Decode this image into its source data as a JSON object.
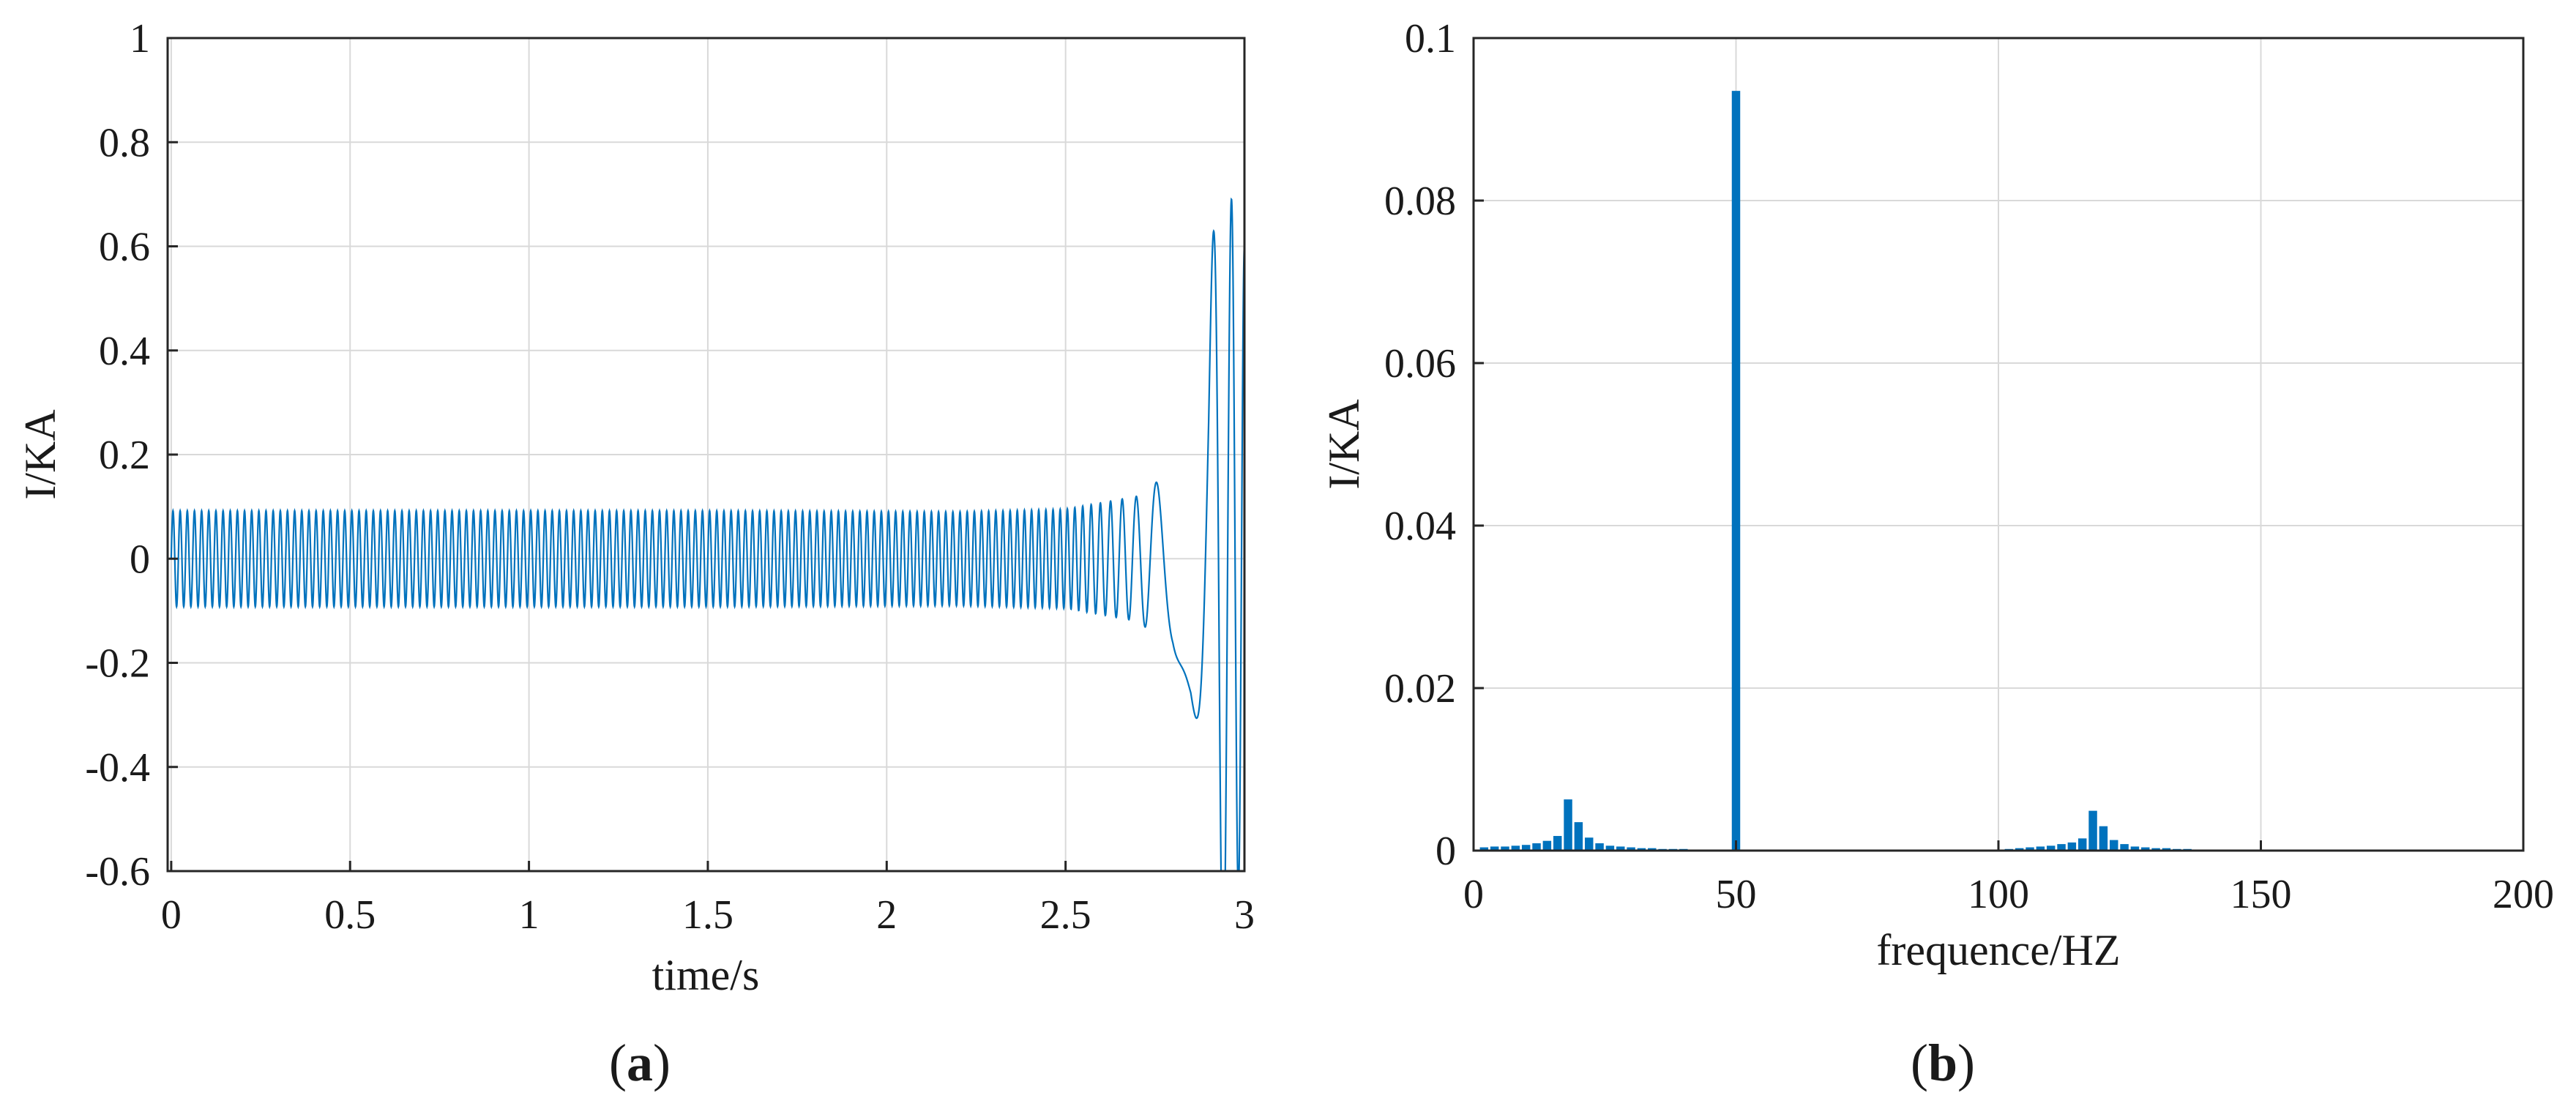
{
  "colors": {
    "series": "#0072BD",
    "grid": "#d9d9d9",
    "axis": "#262626"
  },
  "panels": {
    "a": {
      "label_open": "(",
      "label_letter": "a",
      "label_close": ")"
    },
    "b": {
      "label_open": "(",
      "label_letter": "b",
      "label_close": ")"
    }
  },
  "chart_data": [
    {
      "id": "a",
      "type": "line",
      "title": "",
      "xlabel": "time/s",
      "ylabel": "I/KA",
      "xlim": [
        -0.01,
        3.0
      ],
      "ylim": [
        -0.6,
        1.0
      ],
      "xticks": [
        0,
        0.5,
        1,
        1.5,
        2,
        2.5,
        3
      ],
      "xtick_labels": [
        "0",
        "0.5",
        "1",
        "1.5",
        "2",
        "2.5",
        "3"
      ],
      "yticks": [
        -0.6,
        -0.4,
        -0.2,
        0,
        0.2,
        0.4,
        0.6,
        0.8,
        1.0
      ],
      "ytick_labels": [
        "-0.6",
        "-0.4",
        "-0.2",
        "0",
        "0.2",
        "0.4",
        "0.6",
        "0.8",
        "1"
      ],
      "grid": true,
      "series": [
        {
          "frequency_hz": 50,
          "envelope_t": [
            0,
            1.5,
            2.2,
            2.5,
            2.7,
            2.8,
            2.85,
            2.9,
            2.93,
            2.96,
            3.0
          ],
          "envelope_amp": [
            0.092,
            0.092,
            0.09,
            0.095,
            0.12,
            0.17,
            0.26,
            0.45,
            0.87,
            0.7,
            0.6
          ]
        }
      ]
    },
    {
      "id": "b",
      "type": "bar",
      "title": "",
      "xlabel": "frequence/HZ",
      "ylabel": "I/KA",
      "xlim": [
        0,
        200
      ],
      "ylim": [
        0,
        0.1
      ],
      "xticks": [
        0,
        50,
        100,
        150,
        200
      ],
      "xtick_labels": [
        "0",
        "50",
        "100",
        "150",
        "200"
      ],
      "yticks": [
        0,
        0.02,
        0.04,
        0.06,
        0.08,
        0.1
      ],
      "ytick_labels": [
        "0",
        "0.02",
        "0.04",
        "0.06",
        "0.08",
        "0.1"
      ],
      "grid": true,
      "x": [
        2,
        4,
        6,
        8,
        10,
        12,
        14,
        16,
        18,
        20,
        22,
        24,
        26,
        28,
        30,
        32,
        34,
        36,
        38,
        40,
        42,
        44,
        46,
        50,
        100,
        102,
        104,
        106,
        108,
        110,
        112,
        114,
        116,
        118,
        120,
        122,
        124,
        126,
        128,
        130,
        132,
        134,
        136,
        138,
        140,
        142,
        144
      ],
      "values": [
        0.0004,
        0.0005,
        0.0005,
        0.0006,
        0.0007,
        0.0009,
        0.0012,
        0.0018,
        0.0063,
        0.0035,
        0.0016,
        0.0009,
        0.0006,
        0.0005,
        0.0004,
        0.0003,
        0.0003,
        0.0002,
        0.0002,
        0.0002,
        0.0001,
        0.0001,
        0.0001,
        0.0935,
        0.0001,
        0.0002,
        0.0003,
        0.0004,
        0.0005,
        0.0006,
        0.0008,
        0.001,
        0.0015,
        0.0049,
        0.003,
        0.0013,
        0.0008,
        0.0005,
        0.0004,
        0.0003,
        0.0003,
        0.0002,
        0.0002,
        0.0001,
        0.0001,
        0.0001,
        0.0001
      ]
    }
  ]
}
